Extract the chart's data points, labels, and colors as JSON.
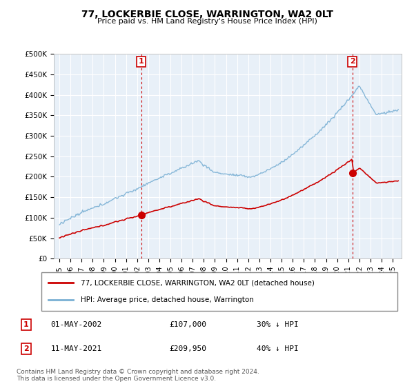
{
  "title": "77, LOCKERBIE CLOSE, WARRINGTON, WA2 0LT",
  "subtitle": "Price paid vs. HM Land Registry's House Price Index (HPI)",
  "hpi_color": "#7ab0d4",
  "sale_color": "#cc0000",
  "bg_color": "#e8f0f8",
  "ylim": [
    0,
    500000
  ],
  "yticks": [
    0,
    50000,
    100000,
    150000,
    200000,
    250000,
    300000,
    350000,
    400000,
    450000,
    500000
  ],
  "ytick_labels": [
    "£0",
    "£50K",
    "£100K",
    "£150K",
    "£200K",
    "£250K",
    "£300K",
    "£350K",
    "£400K",
    "£450K",
    "£500K"
  ],
  "sale1_year": 2002.37,
  "sale1_price": 107000,
  "sale2_year": 2021.37,
  "sale2_price": 209950,
  "legend_sale": "77, LOCKERBIE CLOSE, WARRINGTON, WA2 0LT (detached house)",
  "legend_hpi": "HPI: Average price, detached house, Warrington",
  "footnote": "Contains HM Land Registry data © Crown copyright and database right 2024.\nThis data is licensed under the Open Government Licence v3.0.",
  "row1": [
    "1",
    "01-MAY-2002",
    "£107,000",
    "30% ↓ HPI"
  ],
  "row2": [
    "2",
    "11-MAY-2021",
    "£209,950",
    "40% ↓ HPI"
  ]
}
